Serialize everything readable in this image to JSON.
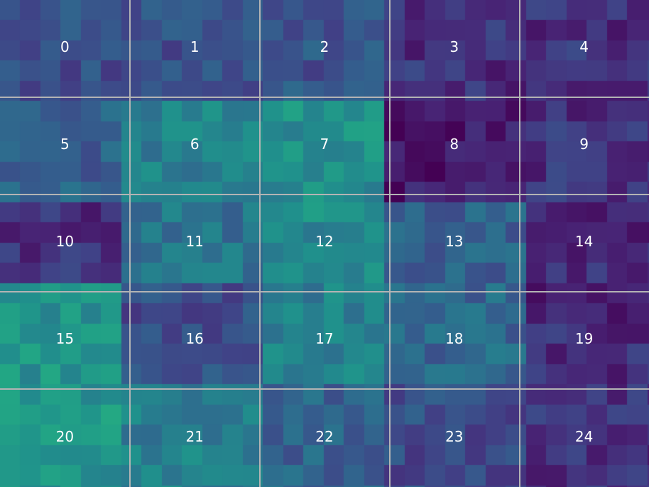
{
  "chart_data": {
    "type": "heatmap",
    "colormap": "viridis",
    "grid": {
      "rows": 5,
      "cols": 5,
      "line_color": "#b4b4b4"
    },
    "cell_labels": [
      "0",
      "1",
      "2",
      "3",
      "4",
      "5",
      "6",
      "7",
      "8",
      "9",
      "10",
      "11",
      "12",
      "13",
      "14",
      "15",
      "16",
      "17",
      "18",
      "19",
      "20",
      "21",
      "22",
      "23",
      "24"
    ],
    "cell_intensity": [
      [
        0.3,
        0.32,
        0.33,
        0.18,
        0.18
      ],
      [
        0.38,
        0.55,
        0.62,
        0.08,
        0.18
      ],
      [
        0.18,
        0.48,
        0.6,
        0.4,
        0.15
      ],
      [
        0.65,
        0.3,
        0.55,
        0.42,
        0.15
      ],
      [
        0.65,
        0.55,
        0.4,
        0.3,
        0.18
      ]
    ]
  }
}
